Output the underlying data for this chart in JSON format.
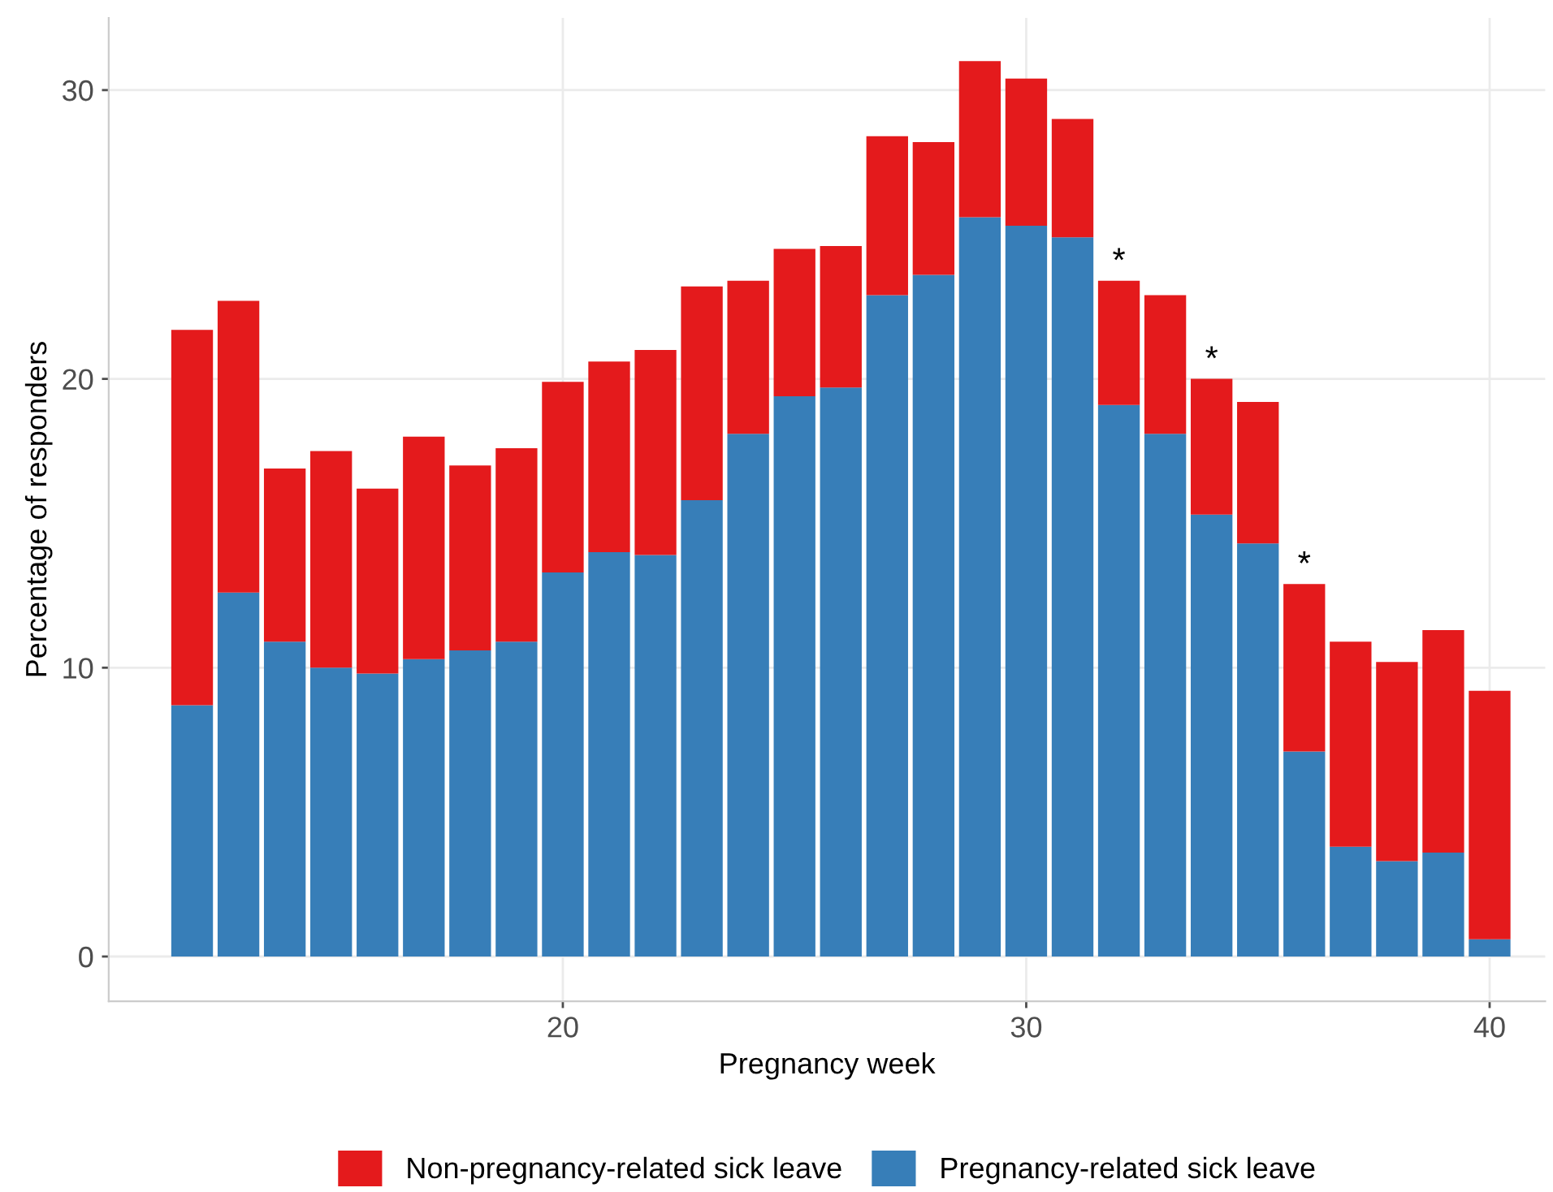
{
  "chart_data": {
    "type": "bar",
    "stacked": true,
    "xlabel": "Pregnancy week",
    "ylabel": "Percentage of responders",
    "x": [
      12,
      13,
      14,
      15,
      16,
      17,
      18,
      19,
      20,
      21,
      22,
      23,
      24,
      25,
      26,
      27,
      28,
      29,
      30,
      31,
      32,
      33,
      34,
      35,
      36,
      37,
      38,
      39,
      40
    ],
    "series": [
      {
        "name": "Pregnancy-related sick leave",
        "color": "#377eb8",
        "values": [
          8.7,
          12.6,
          10.9,
          10.0,
          9.8,
          10.3,
          10.6,
          10.9,
          13.3,
          14.0,
          13.9,
          15.8,
          18.1,
          19.4,
          19.7,
          22.9,
          23.6,
          25.6,
          25.3,
          24.9,
          19.1,
          18.1,
          15.3,
          14.3,
          7.1,
          3.8,
          3.3,
          3.6,
          0.6
        ]
      },
      {
        "name": "Non-pregnancy-related sick leave",
        "color": "#e41a1c",
        "values": [
          13.0,
          10.1,
          6.0,
          7.5,
          6.4,
          7.7,
          6.4,
          6.7,
          6.6,
          6.6,
          7.1,
          7.4,
          5.3,
          5.1,
          4.9,
          5.5,
          4.6,
          5.4,
          5.1,
          4.1,
          4.3,
          4.8,
          4.7,
          4.9,
          5.8,
          7.1,
          6.9,
          7.7,
          8.6
        ]
      }
    ],
    "xlim": [
      10.2,
      41.2
    ],
    "xticks": [
      20,
      30,
      40
    ],
    "ylim": [
      -1.55,
      32.5
    ],
    "yticks": [
      0,
      10,
      20,
      30
    ],
    "grid": true,
    "legend": "bottom",
    "annotations": [
      {
        "text": "*",
        "x": 32,
        "y": 23.4
      },
      {
        "text": "*",
        "x": 34,
        "y": 20.0
      },
      {
        "text": "*",
        "x": 36,
        "y": 12.9
      }
    ]
  }
}
